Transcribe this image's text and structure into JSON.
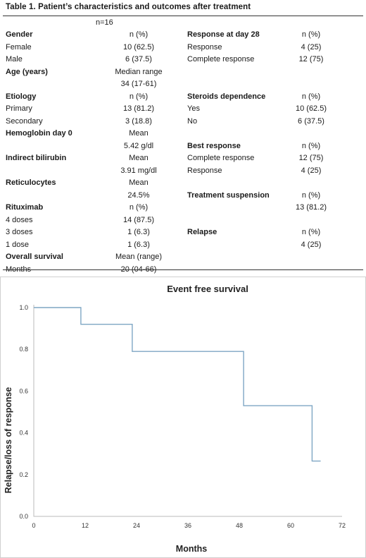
{
  "table": {
    "title": "Table 1. Patient’s characteristics and outcomes after treatment",
    "n_label": "n=16",
    "rows": [
      [
        {
          "t": "Gender",
          "b": true
        },
        {
          "t": "n (%)"
        },
        {
          "t": "Response at day 28",
          "b": true
        },
        {
          "t": "n (%)"
        }
      ],
      [
        {
          "t": "Female"
        },
        {
          "t": "10 (62.5)"
        },
        {
          "t": "Response"
        },
        {
          "t": "4 (25)"
        }
      ],
      [
        {
          "t": "Male"
        },
        {
          "t": "6 (37.5)"
        },
        {
          "t": "Complete response"
        },
        {
          "t": "12 (75)"
        }
      ],
      [
        {
          "t": "Age (years)",
          "b": true
        },
        {
          "t": "Median range"
        },
        {
          "t": ""
        },
        {
          "t": ""
        }
      ],
      [
        {
          "t": ""
        },
        {
          "t": "34 (17-61)"
        },
        {
          "t": ""
        },
        {
          "t": ""
        }
      ],
      [
        {
          "t": "Etiology",
          "b": true
        },
        {
          "t": "n (%)"
        },
        {
          "t": "Steroids dependence",
          "b": true
        },
        {
          "t": "n (%)"
        }
      ],
      [
        {
          "t": "Primary"
        },
        {
          "t": "13 (81.2)"
        },
        {
          "t": "Yes"
        },
        {
          "t": "10 (62.5)"
        }
      ],
      [
        {
          "t": "Secondary"
        },
        {
          "t": "3 (18.8)"
        },
        {
          "t": "No"
        },
        {
          "t": "6 (37.5)"
        }
      ],
      [
        {
          "t": "Hemoglobin day 0",
          "b": true
        },
        {
          "t": "Mean"
        },
        {
          "t": ""
        },
        {
          "t": ""
        }
      ],
      [
        {
          "t": ""
        },
        {
          "t": "5.42 g/dl"
        },
        {
          "t": "Best response",
          "b": true
        },
        {
          "t": "n (%)"
        }
      ],
      [
        {
          "t": "Indirect bilirubin",
          "b": true
        },
        {
          "t": "Mean"
        },
        {
          "t": "Complete response"
        },
        {
          "t": "12 (75)"
        }
      ],
      [
        {
          "t": ""
        },
        {
          "t": "3.91 mg/dl"
        },
        {
          "t": "Response"
        },
        {
          "t": "4 (25)"
        }
      ],
      [
        {
          "t": "Reticulocytes",
          "b": true
        },
        {
          "t": "Mean"
        },
        {
          "t": ""
        },
        {
          "t": ""
        }
      ],
      [
        {
          "t": ""
        },
        {
          "t": "24.5%"
        },
        {
          "t": "Treatment suspension",
          "b": true
        },
        {
          "t": "n (%)"
        }
      ],
      [
        {
          "t": "Rituximab",
          "b": true
        },
        {
          "t": "n (%)"
        },
        {
          "t": ""
        },
        {
          "t": "13 (81.2)"
        }
      ],
      [
        {
          "t": "4 doses"
        },
        {
          "t": "14 (87.5)"
        },
        {
          "t": ""
        },
        {
          "t": ""
        }
      ],
      [
        {
          "t": "3 doses"
        },
        {
          "t": "1 (6.3)"
        },
        {
          "t": "Relapse",
          "b": true
        },
        {
          "t": "n (%)"
        }
      ],
      [
        {
          "t": "1 dose"
        },
        {
          "t": "1 (6.3)"
        },
        {
          "t": ""
        },
        {
          "t": "4 (25)"
        }
      ],
      [
        {
          "t": "Overall survival",
          "b": true
        },
        {
          "t": "Mean (range)"
        },
        {
          "t": ""
        },
        {
          "t": ""
        }
      ],
      [
        {
          "t": "Months"
        },
        {
          "t": "20 (04-66)"
        },
        {
          "t": ""
        },
        {
          "t": ""
        }
      ]
    ]
  },
  "chart_data": {
    "type": "line",
    "subtype": "step",
    "title": "Event free survival",
    "xlabel": "Months",
    "ylabel": "Relapse/loss of response",
    "xlim": [
      0,
      72
    ],
    "ylim": [
      0,
      1.0
    ],
    "xticks": [
      "0",
      "12",
      "24",
      "36",
      "48",
      "60",
      "72"
    ],
    "yticks": [
      "0.0",
      "0.2",
      "0.4",
      "0.6",
      "0.8",
      "1.0"
    ],
    "grid": false,
    "line_color": "#7ea6c4",
    "series": [
      {
        "x": [
          0,
          11,
          11,
          23,
          23,
          49,
          49,
          65,
          65,
          67
        ],
        "y": [
          1.0,
          1.0,
          0.92,
          0.92,
          0.79,
          0.79,
          0.53,
          0.53,
          0.265,
          0.265
        ]
      }
    ]
  }
}
